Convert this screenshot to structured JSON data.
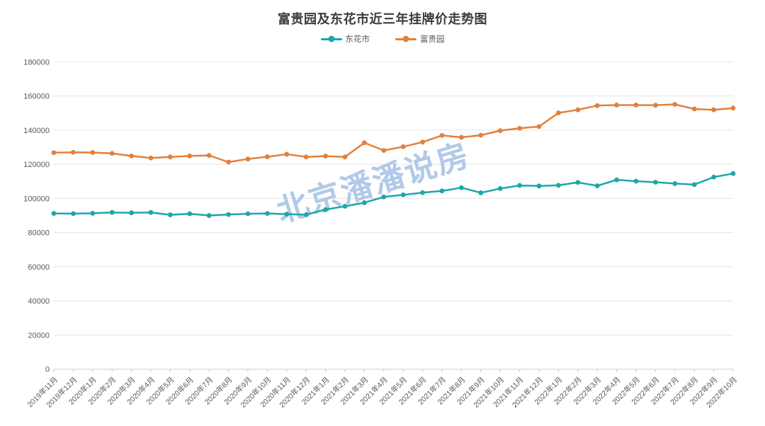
{
  "chart_data": {
    "type": "line",
    "title": "富贵园及东花市近三年挂牌价走势图",
    "watermark": "北京潘潘说房",
    "legend_position": "top",
    "grid": "horizontal",
    "ylim": [
      0,
      180000
    ],
    "yticks": [
      0,
      20000,
      40000,
      60000,
      80000,
      100000,
      120000,
      140000,
      160000,
      180000
    ],
    "categories": [
      "2019年11月",
      "2019年12月",
      "2020年1月",
      "2020年2月",
      "2020年3月",
      "2020年4月",
      "2020年5月",
      "2020年6月",
      "2020年7月",
      "2020年8月",
      "2020年9月",
      "2020年10月",
      "2020年11月",
      "2020年12月",
      "2021年1月",
      "2021年2月",
      "2021年3月",
      "2021年4月",
      "2021年5月",
      "2021年6月",
      "2021年7月",
      "2021年8月",
      "2021年9月",
      "2021年10月",
      "2021年11月",
      "2021年12月",
      "2022年1月",
      "2022年2月",
      "2022年3月",
      "2022年4月",
      "2022年5月",
      "2022年6月",
      "2022年7月",
      "2022年8月",
      "2022年9月",
      "2022年10月"
    ],
    "series": [
      {
        "name": "东花市",
        "color": "#1EA6A9",
        "values": [
          91200,
          91100,
          91300,
          91800,
          91600,
          91800,
          90400,
          91000,
          90000,
          90600,
          91000,
          91200,
          90800,
          90500,
          93500,
          95400,
          97500,
          100900,
          102100,
          103400,
          104400,
          106300,
          103300,
          105800,
          107600,
          107300,
          107700,
          109400,
          107400,
          110900,
          110100,
          109500,
          108700,
          108100,
          112500,
          114600
        ]
      },
      {
        "name": "富贵园",
        "color": "#E0813D",
        "values": [
          126800,
          127000,
          126900,
          126400,
          124900,
          123700,
          124300,
          124900,
          125200,
          121300,
          123100,
          124400,
          125900,
          124300,
          124800,
          124300,
          132600,
          128100,
          130300,
          133000,
          136900,
          135800,
          137000,
          139700,
          141100,
          142100,
          150100,
          151900,
          154400,
          154700,
          154700,
          154600,
          155100,
          152400,
          151900,
          152900
        ]
      }
    ],
    "colors": {
      "title_text": "#3b3b3b",
      "axis_label": "#595959",
      "gridline": "#e4e4e4",
      "axis_line": "#cfcfcf",
      "tick_mark": "#c4c4c4",
      "watermark": "#a9c4e6"
    }
  }
}
